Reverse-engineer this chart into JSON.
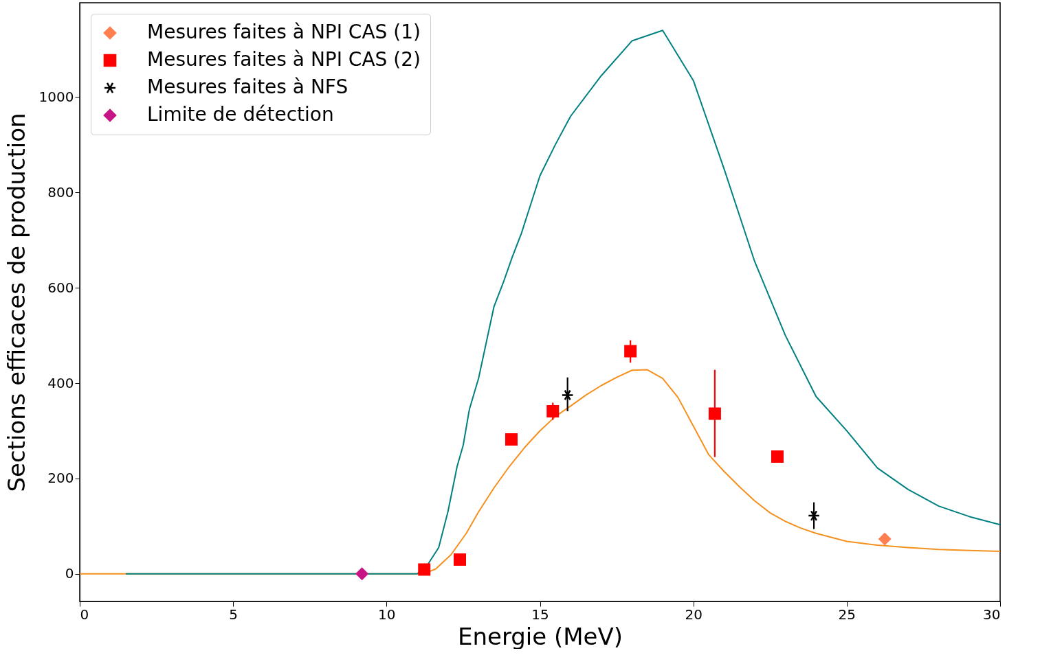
{
  "chart_data": {
    "type": "line",
    "xlabel": "Energie (MeV)",
    "ylabel": "Sections efficaces de production",
    "xlim": [
      0,
      30
    ],
    "xticks": [
      0,
      5,
      10,
      15,
      20,
      25,
      30
    ],
    "ylim": [
      -58,
      1198
    ],
    "yticks": [
      0,
      200,
      400,
      600,
      800,
      1000
    ],
    "grid": false,
    "legend": "top left",
    "series": [
      {
        "color": "#f5901e",
        "x": [
          0,
          11.2,
          11.6,
          12.1,
          12.6,
          13.0,
          13.5,
          14,
          14.5,
          15,
          15.5,
          16,
          16.5,
          17,
          17.5,
          18,
          18.5,
          19,
          19.5,
          20,
          20.5,
          21,
          21.5,
          22,
          22.5,
          23,
          23.5,
          24,
          25,
          26,
          27,
          28,
          29,
          30
        ],
        "values": [
          0,
          0,
          10,
          40,
          85,
          130,
          180,
          225,
          265,
          300,
          330,
          352,
          375,
          395,
          412,
          427,
          428,
          410,
          370,
          310,
          250,
          215,
          183,
          153,
          128,
          110,
          96,
          85,
          68,
          60,
          55,
          51,
          49,
          47
        ]
      },
      {
        "color": "#008080",
        "x": [
          1.5,
          11.0,
          11.3,
          11.7,
          12.0,
          12.3,
          12.5,
          12.7,
          13,
          13.5,
          13.8,
          14.1,
          14.4,
          14.6,
          15,
          15.5,
          16,
          17,
          18,
          19,
          20,
          21,
          22,
          23,
          24,
          25,
          26,
          27,
          28,
          29,
          30
        ],
        "values": [
          0,
          0,
          15,
          55,
          130,
          225,
          270,
          345,
          410,
          560,
          610,
          665,
          715,
          755,
          835,
          900,
          960,
          1045,
          1118,
          1140,
          1035,
          850,
          655,
          500,
          372,
          300,
          222,
          177,
          142,
          120,
          103
        ]
      },
      {
        "type": "scatter",
        "name": "Mesures faites à NPI CAS (1)",
        "color": "#ff7f50",
        "marker": "diamond",
        "x": [
          26.24
        ],
        "values": [
          73
        ]
      },
      {
        "type": "scatter",
        "name": "Mesures faites à NPI CAS (2)",
        "color": "#ff0000",
        "marker": "square",
        "x": [
          11.23,
          12.39,
          14.07,
          15.42,
          17.95,
          20.7,
          22.74
        ],
        "values": [
          9,
          30,
          282,
          341,
          467,
          336,
          246
        ],
        "errors": [
          null,
          null,
          null,
          18,
          [
            443,
            490
          ],
          [
            245,
            428
          ],
          null
        ]
      },
      {
        "type": "scatter",
        "name": "Mesures faites à NFS",
        "color": "#000000",
        "marker": "cross",
        "x": [
          15.9,
          23.93
        ],
        "values": [
          375,
          122
        ],
        "errors": [
          [
            341,
            412
          ],
          [
            94,
            150
          ]
        ]
      },
      {
        "type": "scatter",
        "name": "Limite de détection",
        "color": "#c71585",
        "marker": "diamond",
        "x": [
          9.2
        ],
        "values": [
          0
        ]
      }
    ]
  }
}
